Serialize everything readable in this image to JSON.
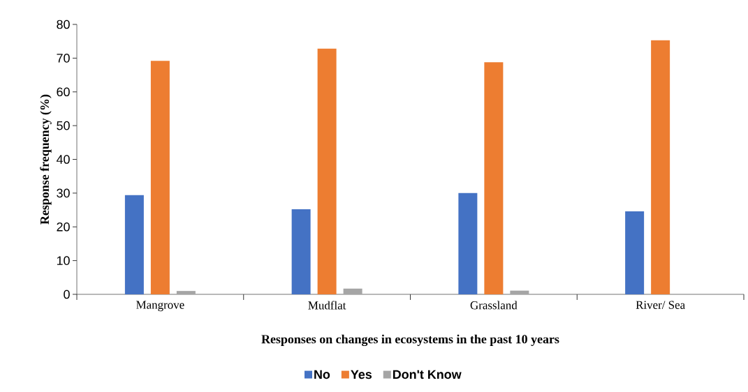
{
  "chart_data": {
    "type": "bar",
    "xlabel": "Responses on changes in ecosystems in the past 10 years",
    "ylabel": "Response frequency (%)",
    "categories": [
      "Mangrove",
      "Mudflat",
      "Grassland",
      "River/ Sea"
    ],
    "series": [
      {
        "name": "No",
        "color": "#4472c4",
        "values": [
          29.4,
          25.2,
          30.0,
          24.6
        ]
      },
      {
        "name": "Yes",
        "color": "#ed7d31",
        "values": [
          69.2,
          72.8,
          68.8,
          75.3
        ]
      },
      {
        "name": "Don't Know",
        "color": "#a5a5a5",
        "values": [
          1.0,
          1.7,
          1.1,
          0
        ]
      }
    ],
    "ylim": [
      0,
      80
    ],
    "yticks": [
      0,
      10,
      20,
      30,
      40,
      50,
      60,
      70,
      80
    ],
    "legend": "bottom"
  }
}
